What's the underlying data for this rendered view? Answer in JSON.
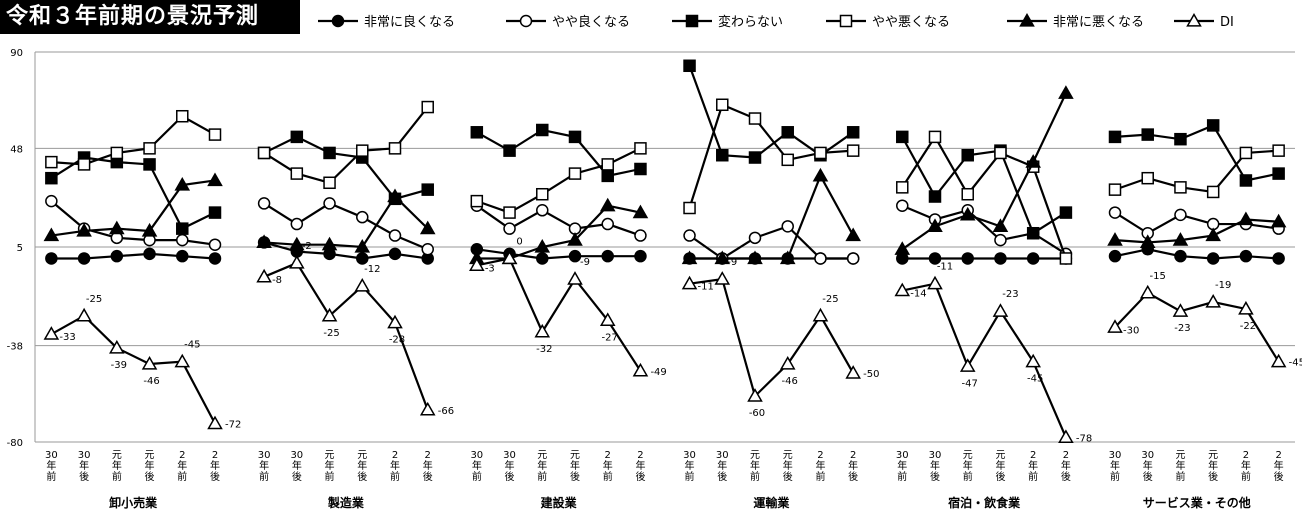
{
  "title": "令和３年前期の景況予測",
  "chart_data": {
    "type": "line",
    "title": "令和３年前期の景況予測",
    "ylim": [
      -80,
      90
    ],
    "yticks": [
      90,
      48,
      5,
      -38,
      -80
    ],
    "x_ticks": [
      [
        "30",
        "年",
        "前"
      ],
      [
        "30",
        "年",
        "後"
      ],
      [
        "元",
        "年",
        "前"
      ],
      [
        "元",
        "年",
        "後"
      ],
      [
        "2",
        "年",
        "前"
      ],
      [
        "2",
        "年",
        "後"
      ]
    ],
    "groups": [
      "卸小売業",
      "製造業",
      "建設業",
      "運輸業",
      "宿泊・飲食業",
      "サービス業・その他"
    ],
    "legend_position": "top",
    "series": [
      {
        "name": "非常に良くなる",
        "marker": "circle-filled",
        "values": [
          [
            0,
            0,
            1,
            2,
            1,
            0
          ],
          [
            7,
            3,
            2,
            0,
            2,
            0
          ],
          [
            4,
            2,
            0,
            1,
            1,
            1
          ],
          [
            0,
            0,
            0,
            0,
            0,
            0
          ],
          [
            0,
            0,
            0,
            0,
            0,
            0
          ],
          [
            1,
            4,
            1,
            0,
            1,
            0
          ]
        ]
      },
      {
        "name": "やや良くなる",
        "marker": "circle-open",
        "values": [
          [
            25,
            13,
            9,
            8,
            8,
            6
          ],
          [
            24,
            15,
            24,
            18,
            10,
            4
          ],
          [
            23,
            13,
            21,
            13,
            15,
            10
          ],
          [
            10,
            0,
            9,
            14,
            0,
            0
          ],
          [
            23,
            17,
            21,
            8,
            11,
            2
          ],
          [
            20,
            11,
            19,
            15,
            15,
            13
          ]
        ]
      },
      {
        "name": "変わらない",
        "marker": "square-filled",
        "values": [
          [
            35,
            44,
            42,
            41,
            13,
            20
          ],
          [
            46,
            53,
            46,
            44,
            26,
            30
          ],
          [
            55,
            47,
            56,
            53,
            36,
            39
          ],
          [
            84,
            45,
            44,
            55,
            45,
            55
          ],
          [
            53,
            27,
            45,
            47,
            11,
            20
          ],
          [
            53,
            54,
            52,
            58,
            34,
            37
          ]
        ]
      },
      {
        "name": "やや悪くなる",
        "marker": "square-open",
        "values": [
          [
            42,
            41,
            46,
            48,
            62,
            54
          ],
          [
            46,
            37,
            33,
            47,
            48,
            66
          ],
          [
            25,
            20,
            28,
            37,
            41,
            48
          ],
          [
            22,
            67,
            61,
            43,
            46,
            47
          ],
          [
            31,
            53,
            28,
            46,
            40,
            0
          ],
          [
            30,
            35,
            31,
            29,
            46,
            47
          ]
        ]
      },
      {
        "name": "非常に悪くなる",
        "marker": "triangle-filled",
        "values": [
          [
            10,
            12,
            13,
            12,
            32,
            34
          ],
          [
            7,
            6,
            6,
            5,
            27,
            13
          ],
          [
            0,
            0,
            5,
            8,
            23,
            20
          ],
          [
            0,
            0,
            0,
            0,
            36,
            10
          ],
          [
            4,
            14,
            19,
            14,
            42,
            72
          ],
          [
            8,
            7,
            8,
            10,
            17,
            16
          ]
        ]
      },
      {
        "name": "DI",
        "marker": "triangle-open",
        "labeled": true,
        "values": [
          [
            -33,
            -25,
            -39,
            -46,
            -45,
            -72
          ],
          [
            -8,
            -2,
            -25,
            -12,
            -28,
            -66
          ],
          [
            -3,
            0,
            -32,
            -9,
            -27,
            -49
          ],
          [
            -11,
            -9,
            -60,
            -46,
            -25,
            -50
          ],
          [
            -14,
            -11,
            -47,
            -23,
            -45,
            -78
          ],
          [
            -30,
            -15,
            -23,
            -19,
            -22,
            -45
          ]
        ]
      }
    ]
  }
}
